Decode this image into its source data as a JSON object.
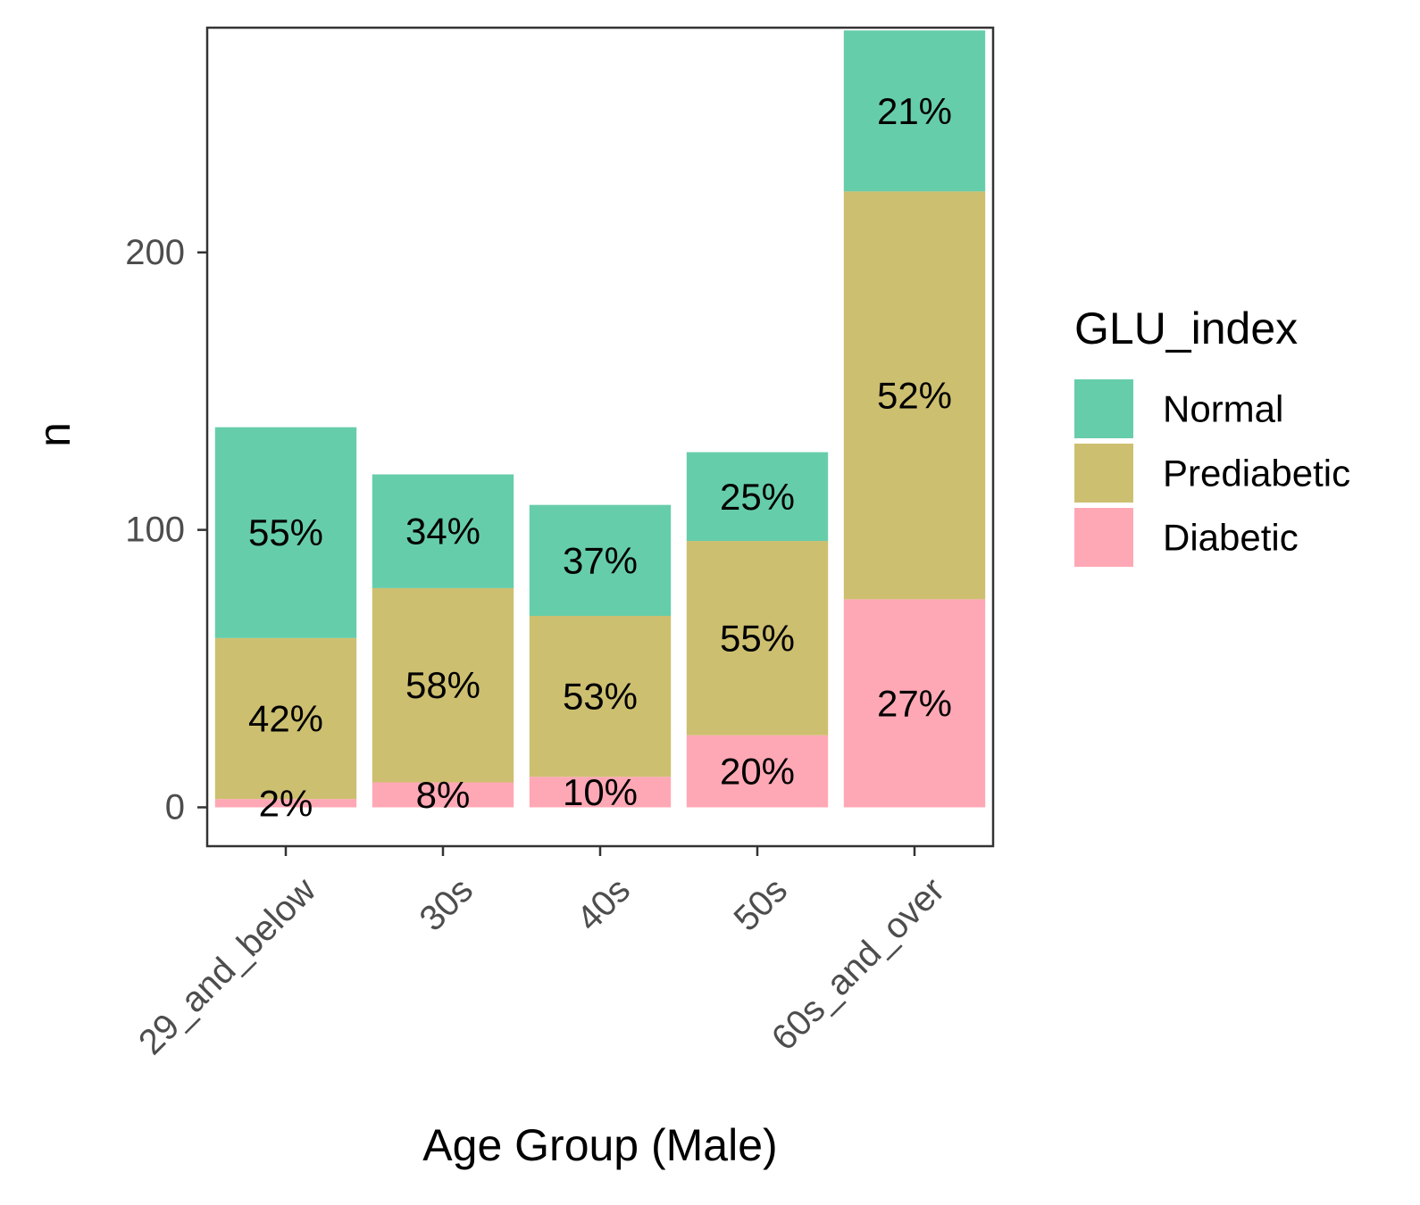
{
  "chart_data": {
    "type": "bar",
    "stacked": true,
    "xlabel": "Age Group (Male)",
    "ylabel": "n",
    "ylim": [
      -14,
      281
    ],
    "yticks": [
      0,
      100,
      200
    ],
    "categories": [
      "29_and_below",
      "30s",
      "40s",
      "50s",
      "60s_and_over"
    ],
    "legend": {
      "title": "GLU_index",
      "position": "right"
    },
    "series": [
      {
        "name": "Diabetic",
        "color": "#ffa8b5",
        "values": [
          3,
          9,
          11,
          26,
          75
        ],
        "labels": [
          "2%",
          "8%",
          "10%",
          "20%",
          "27%"
        ]
      },
      {
        "name": "Prediabetic",
        "color": "#cdbf70",
        "values": [
          58,
          70,
          58,
          70,
          147
        ],
        "labels": [
          "42%",
          "58%",
          "53%",
          "55%",
          "52%"
        ]
      },
      {
        "name": "Normal",
        "color": "#66cdaa",
        "values": [
          76,
          41,
          40,
          32,
          58
        ],
        "labels": [
          "55%",
          "34%",
          "37%",
          "25%",
          "21%"
        ]
      }
    ],
    "legend_order": [
      "Normal",
      "Prediabetic",
      "Diabetic"
    ],
    "grid": false
  }
}
